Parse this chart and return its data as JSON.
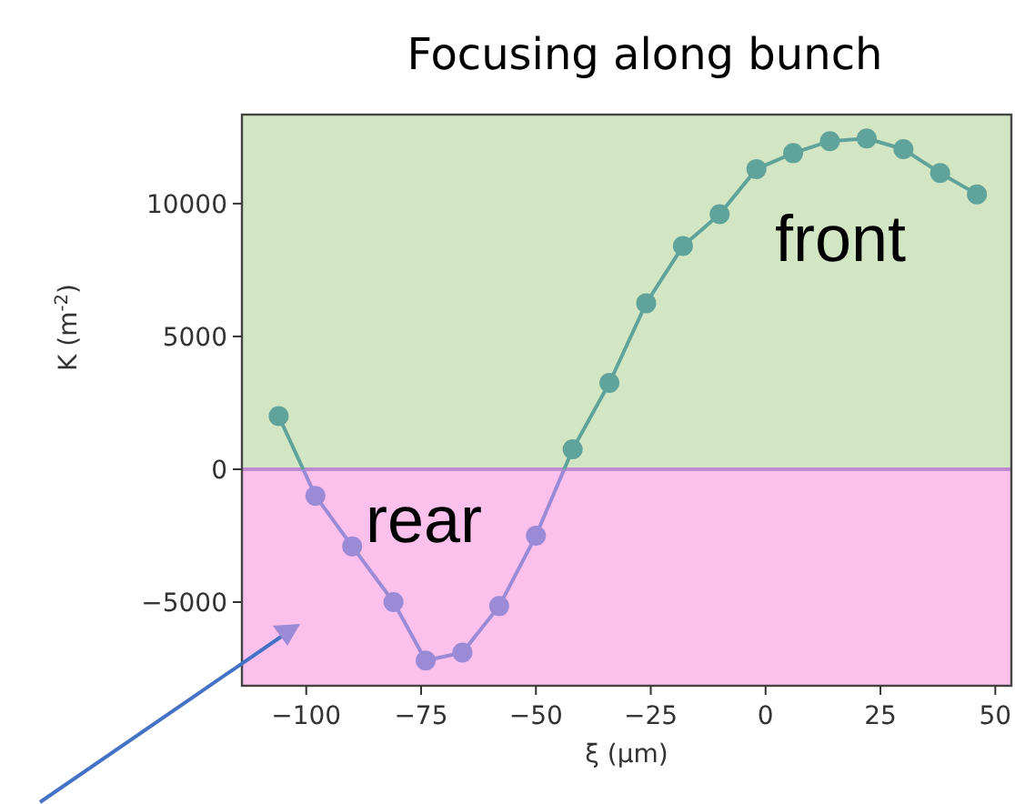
{
  "chart_data": {
    "type": "line",
    "title": "Focusing along bunch",
    "xlabel": "ξ (μm)",
    "ylabel": "K (m$^{-2}$)",
    "x": [
      -106,
      -98,
      -90,
      -81,
      -74,
      -66,
      -58,
      -50,
      -42,
      -34,
      -26,
      -18,
      -10,
      -2,
      6,
      14,
      22,
      30,
      38,
      46
    ],
    "series": [
      {
        "color": "#5fa39b",
        "colors": [
          "#5fa39b",
          "#9b8ad6",
          "#9b8ad6",
          "#9b8ad6",
          "#9b8ad6",
          "#9b8ad6",
          "#9b8ad6",
          "#9b8ad6",
          "#5fa39b",
          "#5fa39b",
          "#5fa39b",
          "#5fa39b",
          "#5fa39b",
          "#5fa39b",
          "#5fa39b",
          "#5fa39b",
          "#5fa39b",
          "#5fa39b",
          "#5fa39b",
          "#5fa39b"
        ],
        "values": [
          2000,
          -1000,
          -2900,
          -5000,
          -7200,
          -6900,
          -5150,
          -2500,
          750,
          3250,
          6250,
          8400,
          9600,
          11300,
          11900,
          12350,
          12450,
          12050,
          11150,
          10350
        ]
      }
    ],
    "bands": [
      {
        "axis": "y",
        "from": 0,
        "to": 13350,
        "label": "front",
        "color": "#d3e6c4"
      },
      {
        "axis": "y",
        "from": -8150,
        "to": 0,
        "label": "rear",
        "color": "#fbc0eb"
      }
    ],
    "ref_lines": [
      {
        "axis": "y",
        "value": 0,
        "color": "#c08ad0"
      }
    ],
    "marker": "circle",
    "line_style": "solid",
    "xlim": [
      -114,
      53.5
    ],
    "xticks": [
      -100,
      -75,
      -50,
      -25,
      0,
      25,
      50
    ],
    "ylim": [
      -8150,
      13350
    ],
    "yticks": [
      -5000,
      0,
      5000,
      10000
    ]
  }
}
